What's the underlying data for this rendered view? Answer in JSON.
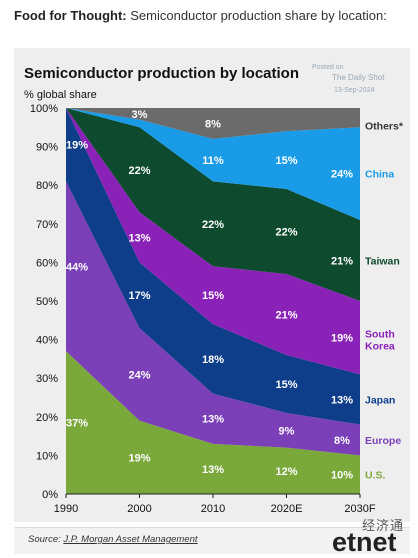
{
  "headline": {
    "bold": "Food for Thought:",
    "rest": "Semiconductor production share by location:"
  },
  "stamp": {
    "posted_on": "Posted on",
    "publisher": "The Daily Shot",
    "date": "13-Sep-2024"
  },
  "source": {
    "prefix": "Source:",
    "link": "J.P. Morgan Asset Management"
  },
  "watermark": {
    "cn": "经济通",
    "en": "etnet"
  },
  "colors": {
    "US": "#7aa83a",
    "Europe": "#7b3fb8",
    "Japan": "#0e3d8a",
    "South Korea": "#8a22b8",
    "Taiwan": "#0d4a2e",
    "China": "#1a9be8",
    "Others": "#6b6b6b"
  },
  "chart_data": {
    "type": "area",
    "title": "Semiconductor production by location",
    "ylabel": "% global share",
    "x": [
      "1990",
      "2000",
      "2010",
      "2020E",
      "2030F"
    ],
    "ylim": [
      0,
      100
    ],
    "yticks": [
      "0%",
      "10%",
      "20%",
      "30%",
      "40%",
      "50%",
      "60%",
      "70%",
      "80%",
      "90%",
      "100%"
    ],
    "stacked": true,
    "series": [
      {
        "name": "U.S.",
        "values": [
          37,
          19,
          13,
          12,
          10
        ],
        "labels": [
          "37%",
          "19%",
          "13%",
          "12%",
          "10%"
        ]
      },
      {
        "name": "Europe",
        "values": [
          44,
          24,
          13,
          9,
          8
        ],
        "labels": [
          "44%",
          "24%",
          "13%",
          "9%",
          "8%"
        ]
      },
      {
        "name": "Japan",
        "values": [
          19,
          17,
          18,
          15,
          13
        ],
        "labels": [
          "19%",
          "17%",
          "18%",
          "15%",
          "13%"
        ]
      },
      {
        "name": "South Korea",
        "values": [
          0,
          13,
          15,
          21,
          19
        ],
        "labels": [
          "",
          "13%",
          "15%",
          "21%",
          "19%"
        ]
      },
      {
        "name": "Taiwan",
        "values": [
          0,
          22,
          22,
          22,
          21
        ],
        "labels": [
          "",
          "22%",
          "22%",
          "22%",
          "21%"
        ]
      },
      {
        "name": "China",
        "values": [
          0,
          2,
          11,
          15,
          24
        ],
        "labels": [
          "",
          "",
          "11%",
          "15%",
          "24%"
        ]
      },
      {
        "name": "Others*",
        "values": [
          0,
          3,
          8,
          6,
          5
        ],
        "labels": [
          "",
          "3%",
          "8%",
          "",
          ""
        ]
      }
    ],
    "legend_position": "right, inline with areas"
  }
}
